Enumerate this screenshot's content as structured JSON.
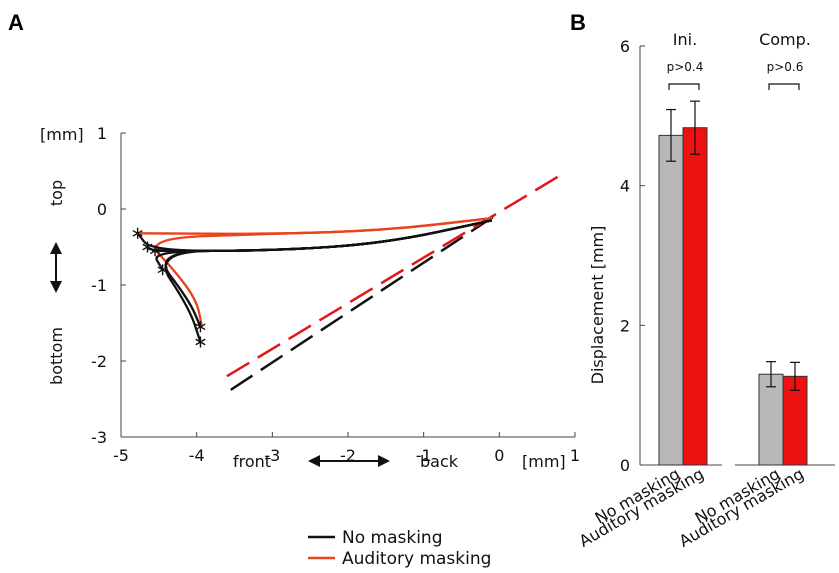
{
  "chart_data": [
    {
      "panel": "A",
      "type": "line",
      "xlim": [
        -5,
        1
      ],
      "ylim": [
        -3,
        1
      ],
      "xticks": [
        "-5",
        "-4",
        "-3",
        "-2",
        "-1",
        "0",
        "1"
      ],
      "yticks": [
        "-3",
        "-2",
        "-1",
        "0",
        "1"
      ],
      "unit_label": "[mm]",
      "x_label_front": "front",
      "x_label_back": "back",
      "y_label_top": "top",
      "y_label_bottom": "bottom",
      "series": [
        {
          "name": "No masking",
          "color": "#111111",
          "trajectories": [
            [
              [
                -0.1,
                -0.15
              ],
              [
                -1.5,
                -0.45
              ],
              [
                -3.0,
                -0.55
              ],
              [
                -4.6,
                -0.55
              ],
              [
                -4.78,
                -0.32
              ]
            ],
            [
              [
                -0.1,
                -0.15
              ],
              [
                -1.5,
                -0.45
              ],
              [
                -3.0,
                -0.55
              ],
              [
                -4.6,
                -0.55
              ],
              [
                -4.65,
                -0.5
              ]
            ],
            [
              [
                -0.1,
                -0.15
              ],
              [
                -1.5,
                -0.45
              ],
              [
                -3.0,
                -0.55
              ],
              [
                -4.6,
                -0.55
              ],
              [
                -4.55,
                -0.55
              ]
            ],
            [
              [
                -0.1,
                -0.15
              ],
              [
                -1.5,
                -0.45
              ],
              [
                -3.0,
                -0.55
              ],
              [
                -4.6,
                -0.55
              ],
              [
                -4.45,
                -0.8
              ]
            ],
            [
              [
                -0.1,
                -0.15
              ],
              [
                -1.5,
                -0.45
              ],
              [
                -3.0,
                -0.55
              ],
              [
                -4.6,
                -0.55
              ],
              [
                -4.1,
                -1.2
              ],
              [
                -3.95,
                -1.55
              ]
            ],
            [
              [
                -0.1,
                -0.15
              ],
              [
                -1.5,
                -0.45
              ],
              [
                -3.0,
                -0.55
              ],
              [
                -4.6,
                -0.55
              ],
              [
                -4.1,
                -1.3
              ],
              [
                -3.95,
                -1.75
              ]
            ]
          ],
          "endpoints": [
            [
              -4.78,
              -0.32
            ],
            [
              -4.65,
              -0.5
            ],
            [
              -4.55,
              -0.55
            ],
            [
              -4.45,
              -0.8
            ],
            [
              -3.95,
              -1.55
            ],
            [
              -3.95,
              -1.75
            ]
          ],
          "fit_line": [
            [
              -3.55,
              -2.38
            ],
            [
              0.0,
              -0.05
            ]
          ]
        },
        {
          "name": "Auditory masking",
          "color": "#e8431a",
          "trajectories": [
            [
              [
                -0.1,
                -0.12
              ],
              [
                -1.5,
                -0.28
              ],
              [
                -3.0,
                -0.33
              ],
              [
                -4.75,
                -0.32
              ]
            ],
            [
              [
                -0.1,
                -0.12
              ],
              [
                -1.5,
                -0.28
              ],
              [
                -3.0,
                -0.33
              ],
              [
                -4.7,
                -0.38
              ],
              [
                -4.3,
                -0.8
              ],
              [
                -4.0,
                -1.2
              ],
              [
                -3.93,
                -1.55
              ]
            ]
          ],
          "fit_line": [
            [
              -3.6,
              -2.2
            ],
            [
              0.85,
              0.47
            ]
          ]
        }
      ],
      "legend": [
        "No masking",
        "Auditory masking"
      ]
    },
    {
      "panel": "B",
      "type": "bar",
      "ylabel": "Displacement [mm]",
      "ylim": [
        0,
        6
      ],
      "yticks": [
        "0",
        "2",
        "4",
        "6"
      ],
      "groups": [
        {
          "title": "Ini.",
          "p_value": "p>0.4",
          "bars": [
            {
              "label": "No masking",
              "value": 4.72,
              "err": 0.37,
              "color": "#b8b8b8"
            },
            {
              "label": "Auditory masking",
              "value": 4.83,
              "err": 0.38,
              "color": "#ee1111"
            }
          ]
        },
        {
          "title": "Comp.",
          "p_value": "p>0.6",
          "bars": [
            {
              "label": "No masking",
              "value": 1.3,
              "err": 0.18,
              "color": "#b8b8b8"
            },
            {
              "label": "Auditory masking",
              "value": 1.27,
              "err": 0.2,
              "color": "#ee1111"
            }
          ]
        }
      ]
    }
  ],
  "panel_labels": {
    "a": "A",
    "b": "B"
  }
}
